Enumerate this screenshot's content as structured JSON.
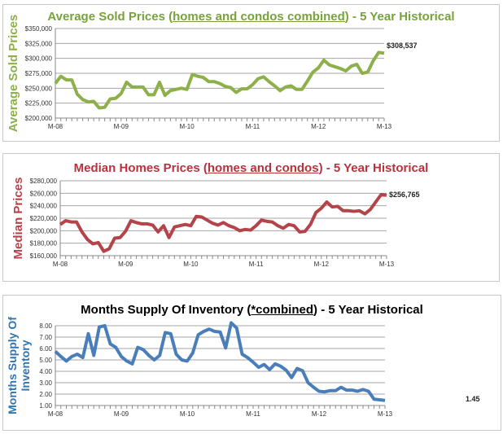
{
  "chart_data": [
    {
      "type": "line",
      "title_pre": "Average Sold Prices (",
      "title_ul": "homes and condos combined",
      "title_post": ") - 5 Year Historical",
      "ylabel": "Average Sold Prices",
      "xlabel": "",
      "xticks": [
        "M-08",
        "M-09",
        "M-10",
        "M-11",
        "M-12",
        "M-13"
      ],
      "yticks": [
        "$200,000",
        "$225,000",
        "$250,000",
        "$275,000",
        "$300,000",
        "$325,000",
        "$350,000"
      ],
      "ylim": [
        200000,
        350000
      ],
      "grid": true,
      "end_label": "$308,537",
      "color": "#8db04a",
      "title_color": "#77a33a",
      "values": [
        258000,
        270000,
        264000,
        264000,
        240000,
        231000,
        227000,
        228000,
        217000,
        218000,
        232000,
        233000,
        241000,
        260000,
        252000,
        252000,
        252000,
        239000,
        239000,
        260000,
        238000,
        246000,
        248000,
        250000,
        248000,
        273000,
        270000,
        268000,
        261000,
        261000,
        258000,
        253000,
        251000,
        243000,
        249000,
        249000,
        256000,
        266000,
        269000,
        261000,
        254000,
        246000,
        252000,
        254000,
        248000,
        248000,
        262000,
        277000,
        284000,
        297000,
        289000,
        286000,
        283000,
        279000,
        287000,
        290000,
        275000,
        277000,
        296000,
        310000,
        308537
      ]
    },
    {
      "type": "line",
      "title_pre": "Median Homes Prices (",
      "title_ul": "homes and condos",
      "title_post": ") - 5 Year Historical",
      "ylabel": "Median Prices",
      "xlabel": "",
      "xticks": [
        "M-08",
        "M-09",
        "M-10",
        "M-11",
        "M-12",
        "M-13"
      ],
      "yticks": [
        "$160,000",
        "$180,000",
        "$200,000",
        "$220,000",
        "$240,000",
        "$260,000",
        "$280,000"
      ],
      "ylim": [
        160000,
        280000
      ],
      "grid": true,
      "end_label": "$256,765",
      "color": "#b5434a",
      "title_color": "#b8313e",
      "values": [
        210000,
        216000,
        214000,
        214000,
        198000,
        186000,
        179000,
        181000,
        167000,
        171000,
        188000,
        189000,
        199000,
        216000,
        213000,
        211000,
        211000,
        209000,
        198000,
        208000,
        189000,
        206000,
        208000,
        210000,
        208000,
        223000,
        222000,
        217000,
        212000,
        209000,
        213000,
        208000,
        205000,
        200000,
        202000,
        201000,
        208000,
        217000,
        215000,
        214000,
        208000,
        204000,
        210000,
        208000,
        198000,
        199000,
        210000,
        229000,
        236000,
        246000,
        238000,
        239000,
        232000,
        232000,
        231000,
        232000,
        227000,
        234000,
        246000,
        258000,
        256765
      ]
    },
    {
      "type": "line",
      "title_pre": "Months Supply Of Inventory (",
      "title_ul": "*combined",
      "title_post": ") - 5 Year Historical",
      "ylabel": "Months Supply Of Inventory",
      "xlabel": "",
      "xticks": [
        "M-08",
        "M-09",
        "M-10",
        "M-11",
        "M-12",
        "M-13"
      ],
      "yticks": [
        "1.00",
        "2.00",
        "3.00",
        "4.00",
        "5.00",
        "6.00",
        "7.00",
        "8.00"
      ],
      "ylim": [
        1,
        8
      ],
      "grid": true,
      "end_label": "1.45",
      "color": "#4a7ebb",
      "title_color": "#000000",
      "values": [
        5.75,
        5.3,
        4.9,
        5.3,
        5.5,
        5.2,
        7.3,
        5.4,
        7.9,
        8.0,
        6.4,
        6.1,
        5.3,
        4.9,
        4.65,
        6.1,
        5.9,
        5.4,
        5.0,
        5.4,
        7.4,
        7.3,
        5.5,
        5.0,
        4.9,
        5.6,
        7.2,
        7.5,
        7.7,
        7.5,
        7.45,
        6.05,
        8.25,
        7.8,
        5.5,
        5.2,
        4.8,
        4.35,
        4.6,
        4.15,
        4.65,
        4.45,
        4.1,
        3.45,
        4.25,
        4.05,
        3.0,
        2.6,
        2.25,
        2.2,
        2.3,
        2.3,
        2.6,
        2.35,
        2.35,
        2.25,
        2.4,
        2.25,
        1.55,
        1.5,
        1.45
      ]
    }
  ]
}
